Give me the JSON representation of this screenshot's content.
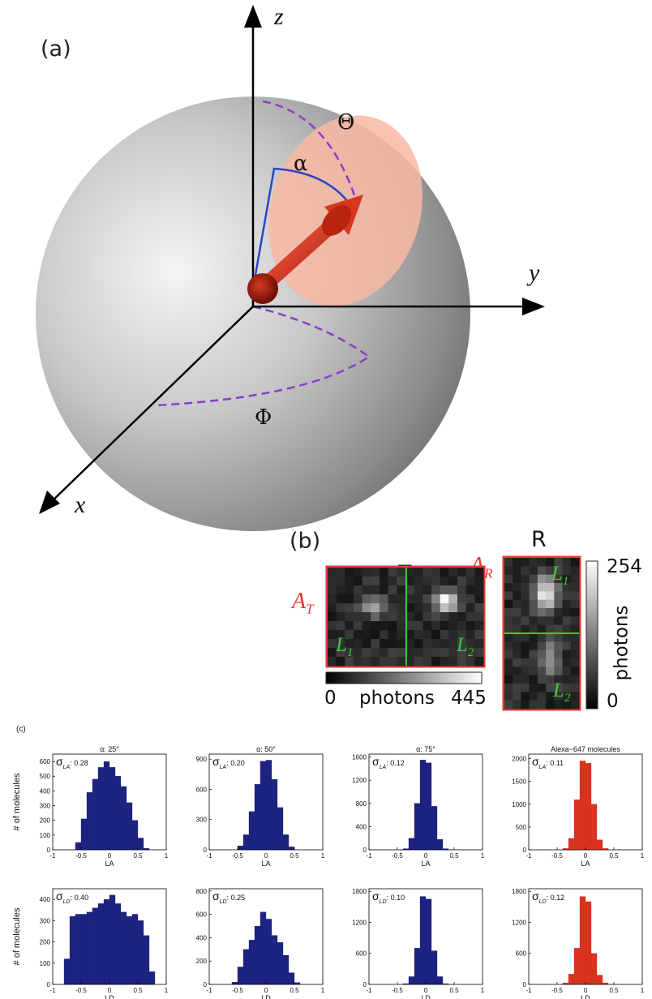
{
  "panel_a": {
    "label": "(a)",
    "axis_z": "z",
    "axis_y": "y",
    "axis_x": "x",
    "theta": "Θ",
    "alpha": "α",
    "phi": "Φ"
  },
  "panel_b": {
    "label": "(b)",
    "t_title": "T",
    "r_title": "R",
    "at_main": "A",
    "at_sub": "T",
    "ar_main": "A",
    "ar_sub": "R",
    "l1_main": "L",
    "l1_sub": "1",
    "l2_main": "L",
    "l2_sub": "2",
    "t_cbar_min": "0",
    "t_cbar_label": "photons",
    "t_cbar_max": "445",
    "r_cbar_max": "254",
    "r_cbar_label": "photons",
    "r_cbar_min": "0",
    "colors": {
      "frame": "#e8382c",
      "divider": "#3cc83c"
    }
  },
  "panel_c": {
    "label": "(c)",
    "ylabel": "# of molecules",
    "colors": {
      "simulated": "#1c2380",
      "measured": "#d8331f"
    }
  },
  "chart_data": [
    {
      "type": "bar",
      "title": "α: 25°",
      "xlabel": "LA",
      "sigma_main": "σ",
      "sigma_sub": "LA",
      "sigma_value": ": 0.28",
      "color": "simulated",
      "xlim": [
        -1,
        1
      ],
      "ylim": [
        0,
        650
      ],
      "yticks": [
        0,
        100,
        200,
        300,
        400,
        500,
        600
      ],
      "xticks": [
        -1,
        -0.5,
        0,
        0.5,
        1
      ],
      "x": [
        -0.55,
        -0.45,
        -0.35,
        -0.25,
        -0.15,
        -0.05,
        0.05,
        0.15,
        0.25,
        0.35,
        0.45,
        0.55,
        0.65
      ],
      "values": [
        50,
        210,
        390,
        480,
        560,
        600,
        560,
        500,
        430,
        320,
        200,
        80,
        10
      ]
    },
    {
      "type": "bar",
      "title": "α: 50°",
      "xlabel": "LA",
      "sigma_main": "σ",
      "sigma_sub": "LA",
      "sigma_value": ": 0.20",
      "color": "simulated",
      "xlim": [
        -1,
        1
      ],
      "ylim": [
        0,
        950
      ],
      "yticks": [
        0,
        300,
        600,
        900
      ],
      "xticks": [
        -1,
        -0.5,
        0,
        0.5,
        1
      ],
      "x": [
        -0.45,
        -0.35,
        -0.25,
        -0.15,
        -0.05,
        0.05,
        0.15,
        0.25,
        0.35,
        0.45
      ],
      "values": [
        40,
        150,
        380,
        650,
        880,
        890,
        700,
        420,
        150,
        30
      ]
    },
    {
      "type": "bar",
      "title": "α: 75°",
      "xlabel": "LA",
      "sigma_main": "σ",
      "sigma_sub": "LA",
      "sigma_value": ": 0.12",
      "color": "simulated",
      "xlim": [
        -1,
        1
      ],
      "ylim": [
        0,
        1650
      ],
      "yticks": [
        0,
        400,
        800,
        1200,
        1600
      ],
      "xticks": [
        -1,
        -0.5,
        0,
        0.5,
        1
      ],
      "x": [
        -0.35,
        -0.25,
        -0.15,
        -0.05,
        0.05,
        0.15,
        0.25,
        0.35
      ],
      "values": [
        20,
        200,
        800,
        1550,
        1500,
        750,
        180,
        20
      ]
    },
    {
      "type": "bar",
      "title": "Alexa−647 molecules",
      "xlabel": "LA",
      "sigma_main": "σ",
      "sigma_sub": "LA",
      "sigma_value": ": 0.11",
      "color": "measured",
      "xlim": [
        -1,
        1
      ],
      "ylim": [
        0,
        2100
      ],
      "yticks": [
        0,
        500,
        1000,
        1500,
        2000
      ],
      "xticks": [
        -1,
        -0.5,
        0,
        0.5,
        1
      ],
      "x": [
        -0.35,
        -0.25,
        -0.15,
        -0.05,
        0.05,
        0.15,
        0.25,
        0.35
      ],
      "values": [
        30,
        250,
        1100,
        1950,
        1900,
        1000,
        220,
        30
      ]
    },
    {
      "type": "bar",
      "title": "",
      "xlabel": "LD",
      "sigma_main": "σ",
      "sigma_sub": "LD",
      "sigma_value": ": 0.40",
      "color": "simulated",
      "xlim": [
        -1,
        1
      ],
      "ylim": [
        0,
        450
      ],
      "yticks": [
        0,
        100,
        200,
        300,
        400
      ],
      "xticks": [
        -1,
        -0.5,
        0,
        0.5,
        1
      ],
      "x": [
        -0.75,
        -0.65,
        -0.55,
        -0.45,
        -0.35,
        -0.25,
        -0.15,
        -0.05,
        0.05,
        0.15,
        0.25,
        0.35,
        0.45,
        0.55,
        0.65,
        0.75
      ],
      "values": [
        120,
        320,
        330,
        330,
        340,
        360,
        380,
        400,
        420,
        380,
        340,
        320,
        330,
        300,
        230,
        60
      ]
    },
    {
      "type": "bar",
      "title": "",
      "xlabel": "LD",
      "sigma_main": "σ",
      "sigma_sub": "LD",
      "sigma_value": ": 0.25",
      "color": "simulated",
      "xlim": [
        -1,
        1
      ],
      "ylim": [
        0,
        820
      ],
      "yticks": [
        0,
        200,
        400,
        600,
        800
      ],
      "xticks": [
        -1,
        -0.5,
        0,
        0.5,
        1
      ],
      "x": [
        -0.55,
        -0.45,
        -0.35,
        -0.25,
        -0.15,
        -0.05,
        0.05,
        0.15,
        0.25,
        0.35,
        0.45,
        0.55
      ],
      "values": [
        20,
        150,
        300,
        380,
        500,
        620,
        560,
        420,
        360,
        250,
        100,
        15
      ]
    },
    {
      "type": "bar",
      "title": "",
      "xlabel": "LD",
      "sigma_main": "σ",
      "sigma_sub": "LD",
      "sigma_value": ": 0.10",
      "color": "simulated",
      "xlim": [
        -1,
        1
      ],
      "ylim": [
        0,
        1850
      ],
      "yticks": [
        0,
        600,
        1200,
        1800
      ],
      "xticks": [
        -1,
        -0.5,
        0,
        0.5,
        1
      ],
      "x": [
        -0.35,
        -0.25,
        -0.15,
        -0.05,
        0.05,
        0.15,
        0.25,
        0.35
      ],
      "values": [
        15,
        150,
        700,
        1700,
        1650,
        650,
        150,
        15
      ]
    },
    {
      "type": "bar",
      "title": "",
      "xlabel": "LD",
      "sigma_main": "σ",
      "sigma_sub": "LD",
      "sigma_value": ": 0.12",
      "color": "measured",
      "xlim": [
        -1,
        1
      ],
      "ylim": [
        0,
        1850
      ],
      "yticks": [
        0,
        600,
        1200,
        1800
      ],
      "xticks": [
        -1,
        -0.5,
        0,
        0.5,
        1
      ],
      "x": [
        -0.35,
        -0.25,
        -0.15,
        -0.05,
        0.05,
        0.15,
        0.25,
        0.35
      ],
      "values": [
        30,
        200,
        700,
        1700,
        1600,
        600,
        180,
        30
      ]
    }
  ]
}
